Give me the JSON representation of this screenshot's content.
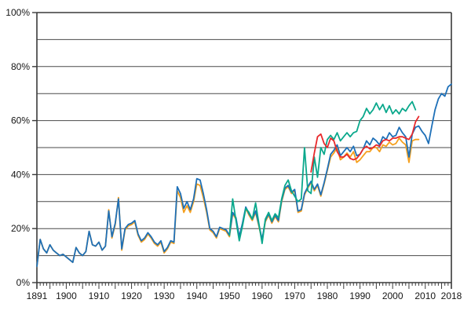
{
  "chart_data": {
    "type": "line",
    "title": "",
    "xlabel": "",
    "ylabel": "",
    "grid": "horizontal",
    "gridline_step_pct": 10,
    "legend_position": "none",
    "ylim": [
      0,
      100
    ],
    "xlim": [
      1891,
      2018
    ],
    "y_tick_values": [
      0,
      20,
      40,
      60,
      80,
      100
    ],
    "y_tick_labels": [
      "0%",
      "20%",
      "40%",
      "60%",
      "80%",
      "100%"
    ],
    "x_tick_label_years": [
      1891,
      1900,
      1910,
      1920,
      1930,
      1940,
      1950,
      1960,
      1970,
      1980,
      1990,
      2000,
      2010,
      2018
    ],
    "x_tick_labels": [
      "1891",
      "1900",
      "1910",
      "1920",
      "1930",
      "1940",
      "1950",
      "1960",
      "1970",
      "1980",
      "1990",
      "2000",
      "2010",
      "2018"
    ],
    "x_minor_tick_every_years": 1,
    "x_major_tick_every_years": 5,
    "series": [
      {
        "name": "orange",
        "color": "#f5a01e",
        "start_year": 1891,
        "end_year": 2008,
        "values": [
          6,
          16,
          12.5,
          11,
          14,
          12,
          11,
          10,
          10.5,
          9.5,
          8.5,
          7.5,
          13,
          11,
          10,
          11.5,
          19,
          14,
          13.5,
          15,
          12,
          13.5,
          27,
          16.5,
          21.5,
          31.5,
          12,
          19.5,
          21,
          21.5,
          22.5,
          17.5,
          15,
          16,
          18,
          16.5,
          14.5,
          13.5,
          15,
          11,
          12.5,
          15,
          14.5,
          34,
          31.5,
          26,
          28.5,
          26,
          30,
          36.5,
          36,
          31.5,
          26,
          19.5,
          18.5,
          16.5,
          20,
          19.5,
          19,
          17,
          25.5,
          23.5,
          16.5,
          21.5,
          27.5,
          25,
          23,
          26,
          21,
          15.5,
          22.5,
          25,
          22,
          24.5,
          22.5,
          30,
          34.5,
          35.5,
          33,
          34,
          26,
          26.5,
          32.5,
          35,
          37,
          34,
          36,
          32,
          36.5,
          41.5,
          46.5,
          48,
          50,
          45.5,
          46.5,
          48,
          46.5,
          48.5,
          44.5,
          45.5,
          47,
          48.5,
          48.5,
          50,
          50,
          48.5,
          51,
          50.5,
          52,
          51,
          51.5,
          53.5,
          52,
          51,
          44.5,
          52.5,
          53,
          53
        ]
      },
      {
        "name": "blue",
        "color": "#1e70b8",
        "start_year": 1891,
        "end_year": 2018,
        "values": [
          6,
          16,
          12.5,
          11,
          14,
          12,
          11,
          10,
          10.5,
          9.5,
          8.5,
          7.5,
          13,
          11,
          10,
          11.5,
          19,
          14,
          13.5,
          15,
          12,
          13.5,
          26.5,
          17,
          22,
          31,
          12.5,
          20,
          21.5,
          22,
          23,
          18,
          15.5,
          16.5,
          18.5,
          17,
          15,
          14,
          15.5,
          11.5,
          13,
          15.5,
          15,
          35.5,
          33,
          27.5,
          30,
          27,
          31,
          38.5,
          38,
          33,
          27,
          20,
          19,
          17,
          20.5,
          20,
          19.5,
          17.5,
          26,
          24,
          17,
          22,
          28,
          25.5,
          23.5,
          26.5,
          21.5,
          16,
          23,
          25.5,
          22.5,
          25,
          23,
          30.5,
          35,
          36,
          33.5,
          34.5,
          26.5,
          27,
          33,
          35.5,
          37.5,
          34.5,
          36.5,
          32.5,
          37,
          42,
          47.5,
          49,
          51,
          47,
          48.5,
          50,
          48.5,
          50.5,
          47,
          47.5,
          49.5,
          52.5,
          51,
          53.5,
          52.5,
          51,
          54,
          53,
          55.5,
          54,
          54.5,
          57.5,
          55.5,
          54,
          46.5,
          55,
          57.5,
          58,
          56,
          54.5,
          51.5,
          58,
          64,
          68,
          70,
          69,
          72.5,
          73.5
        ]
      },
      {
        "name": "teal",
        "color": "#0aa88c",
        "start_year": 1950,
        "end_year": 2007,
        "values": [
          17.5,
          31,
          23,
          15.5,
          21,
          27.5,
          26,
          23.5,
          29.5,
          22,
          14.5,
          23.5,
          26,
          23,
          25.5,
          24,
          31,
          36,
          38,
          34,
          32,
          30,
          31,
          50,
          34,
          33,
          46.5,
          39,
          50,
          47.5,
          53,
          54.5,
          53,
          55.5,
          52.5,
          54,
          55.5,
          54,
          55.5,
          56,
          60,
          61.5,
          64.5,
          62.5,
          64,
          66.5,
          64,
          66,
          63,
          65.5,
          62.5,
          64,
          62.5,
          64.5,
          63.5,
          65.5,
          67,
          64
        ]
      },
      {
        "name": "red",
        "color": "#e8282b",
        "start_year": 1975,
        "end_year": 2008,
        "values": [
          41,
          48,
          54,
          55,
          51.5,
          50,
          53.5,
          52.5,
          48.5,
          46.5,
          46.5,
          47.5,
          46,
          45.5,
          46,
          47.5,
          49.5,
          50.5,
          49.5,
          50,
          51,
          50.5,
          52.5,
          53,
          52.5,
          53.5,
          53.5,
          54,
          54,
          53.5,
          53,
          55,
          59.5,
          61.5
        ]
      }
    ]
  },
  "layout_colors": {
    "background": "#ffffff",
    "gridline": "#4a4a4a",
    "axis": "#3a3a3a",
    "text": "#161616"
  }
}
